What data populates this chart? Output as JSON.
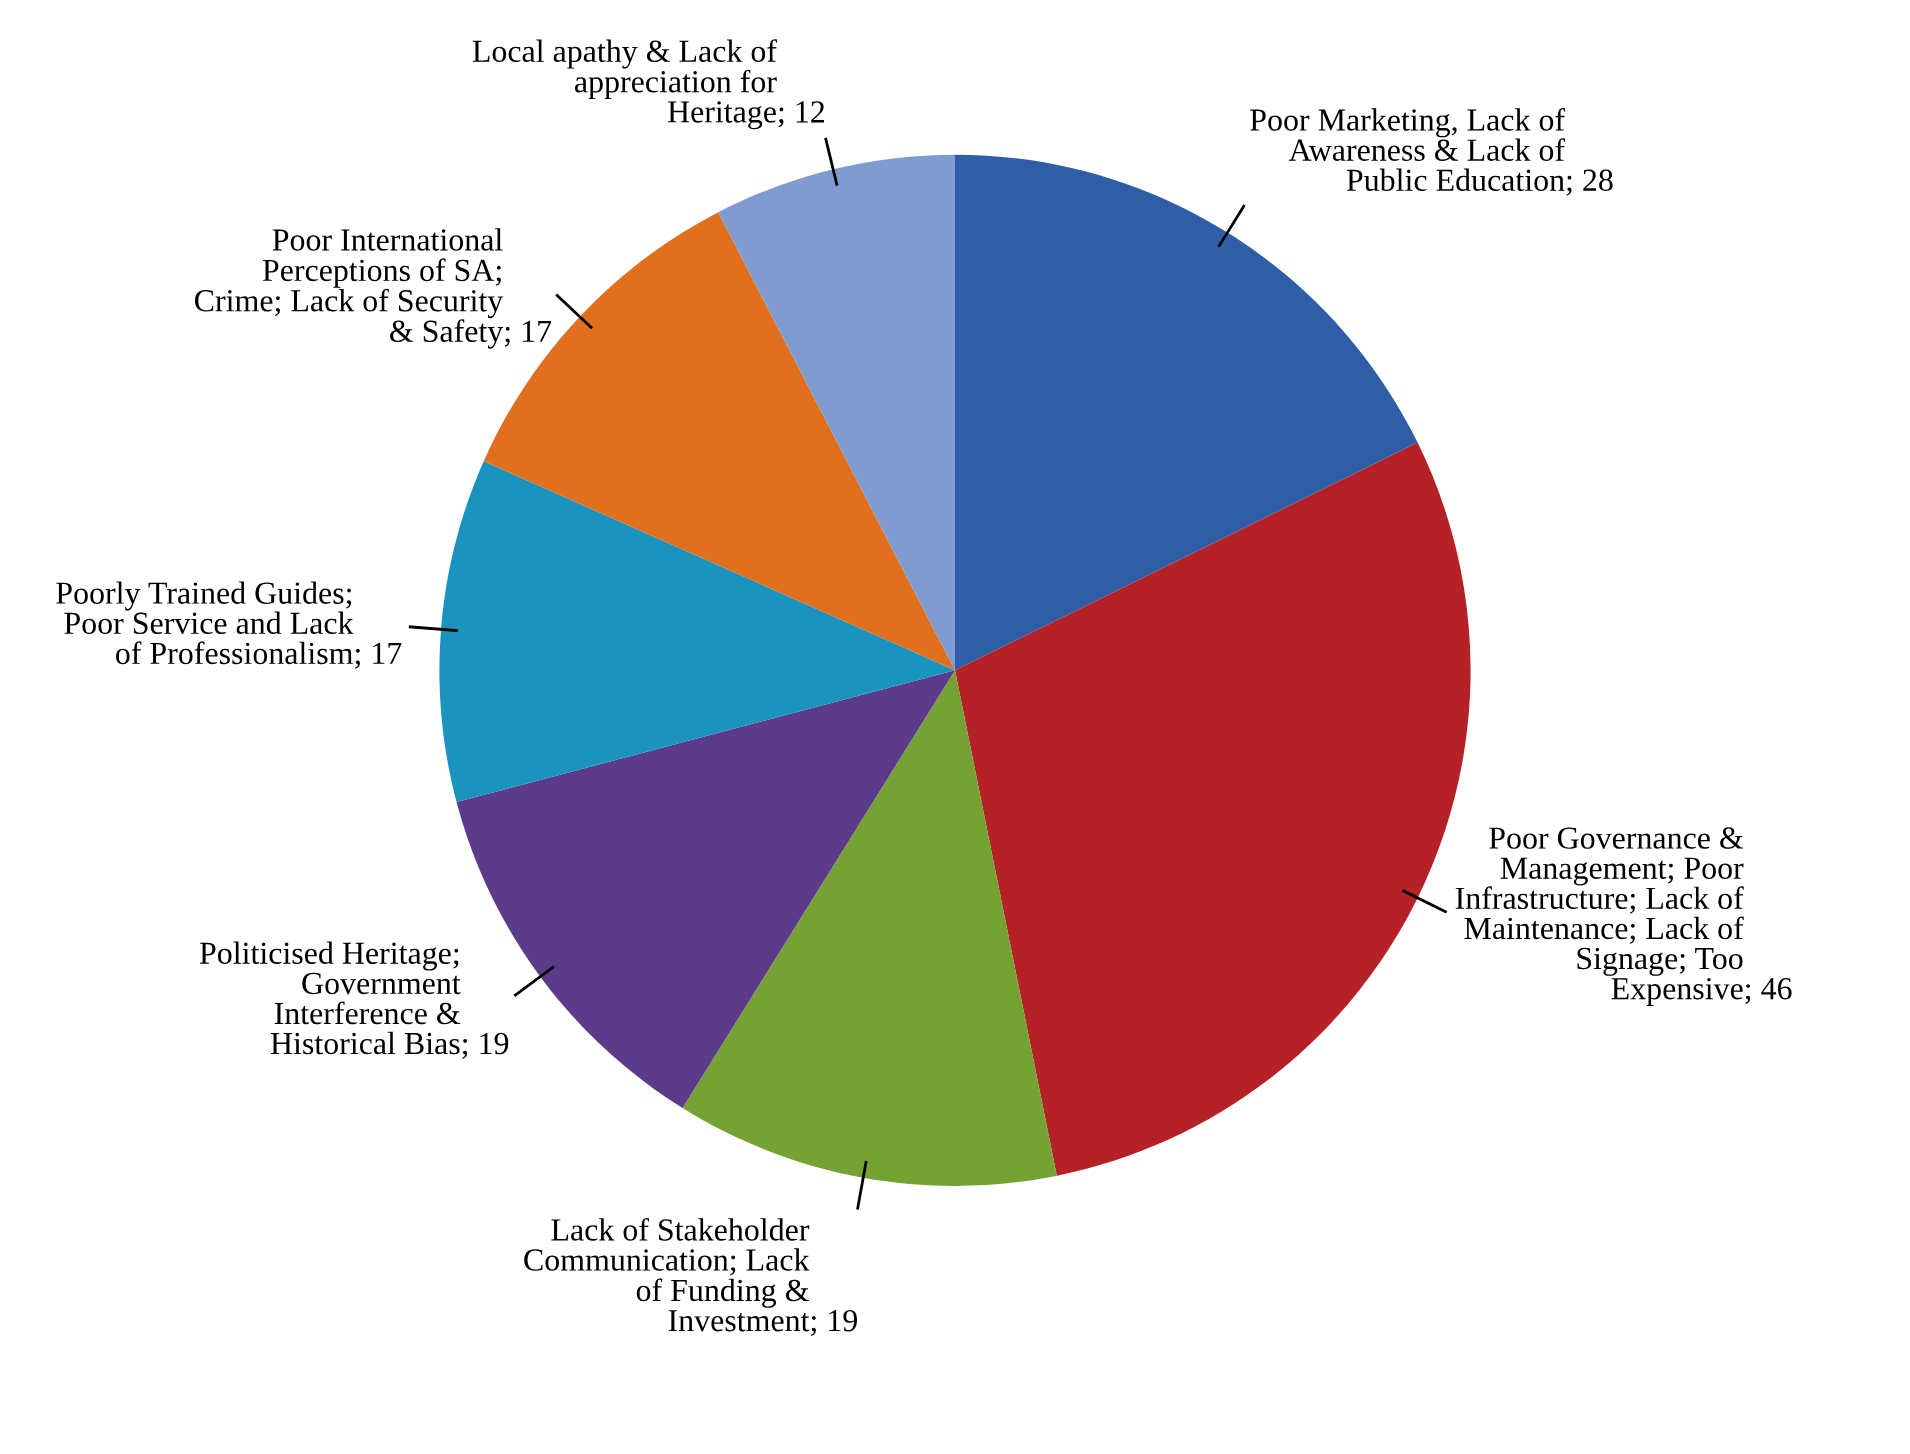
{
  "chart_data": {
    "type": "pie",
    "categories": [
      "Poor Marketing, Lack of\nAwareness & Lack of\nPublic Education",
      "Poor Governance &\nManagement; Poor\nInfrastructure; Lack of\nMaintenance; Lack of\nSignage; Too\nExpensive",
      "Lack of Stakeholder\nCommunication; Lack\nof Funding &\nInvestment",
      "Politicised Heritage;\nGovernment\nInterference &\nHistorical Bias",
      "Poorly Trained Guides;\nPoor Service and Lack\nof Professionalism",
      "Poor International\nPerceptions of SA;\nCrime; Lack of Security\n& Safety",
      "Local apathy & Lack of\nappreciation for\nHeritage"
    ],
    "values": [
      28,
      46,
      19,
      19,
      17,
      17,
      12
    ],
    "colors": [
      "#2f5ea6",
      "#b42227",
      "#76a135",
      "#5c3b8b",
      "#1b93bf",
      "#e0701d",
      "#7f9bd0"
    ],
    "value_labels": [
      "; 28",
      "; 46",
      "; 19",
      "; 19",
      "; 17",
      "; 17",
      "; 12"
    ]
  }
}
